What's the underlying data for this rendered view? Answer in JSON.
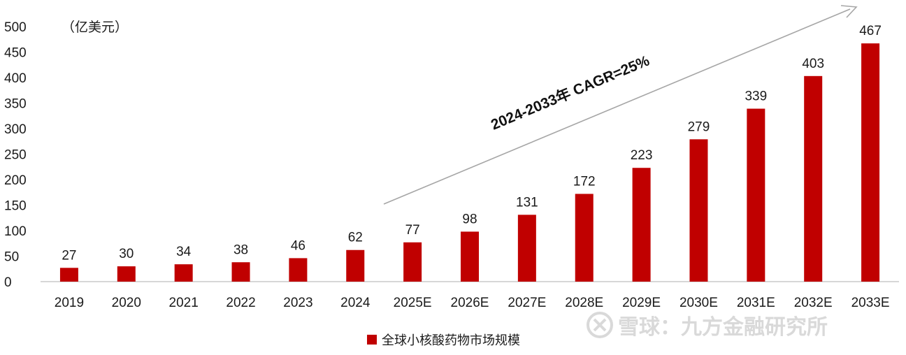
{
  "chart_data": {
    "type": "bar",
    "unit_label": "（亿美元）",
    "categories": [
      "2019",
      "2020",
      "2021",
      "2022",
      "2023",
      "2024",
      "2025E",
      "2026E",
      "2027E",
      "2028E",
      "2029E",
      "2030E",
      "2031E",
      "2032E",
      "2033E"
    ],
    "series": [
      {
        "name": "全球小核酸药物市场规模",
        "values": [
          27,
          30,
          34,
          38,
          46,
          62,
          77,
          98,
          131,
          172,
          223,
          279,
          339,
          403,
          467
        ],
        "color": "#c00000"
      }
    ],
    "ylim": [
      0,
      500
    ],
    "yticks": [
      0,
      50,
      100,
      150,
      200,
      250,
      300,
      350,
      400,
      450,
      500
    ],
    "grid": false,
    "legend_position": "bottom-center",
    "annotation": "2024-2033年 CAGR=25%"
  },
  "watermark": {
    "text": "雪球：九方金融研究所",
    "icon": "snowball-logo-icon"
  }
}
